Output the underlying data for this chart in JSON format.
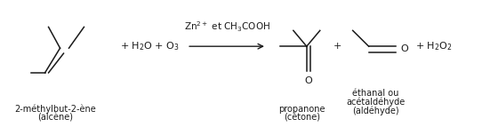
{
  "bg_color": "#ffffff",
  "text_color": "#1a1a1a",
  "fig_width": 5.42,
  "fig_height": 1.43,
  "dpi": 100,
  "reactant_label1": "2-méthylbut-2-ène",
  "reactant_label2": "(alcène)",
  "product1_label1": "propanone",
  "product1_label2": "(cétone)",
  "product2_label1": "éthanal ou",
  "product2_label2": "acétaldéhyde",
  "product2_label3": "(aldéhyde)",
  "font_size_main": 8.0,
  "font_size_label": 7.0
}
